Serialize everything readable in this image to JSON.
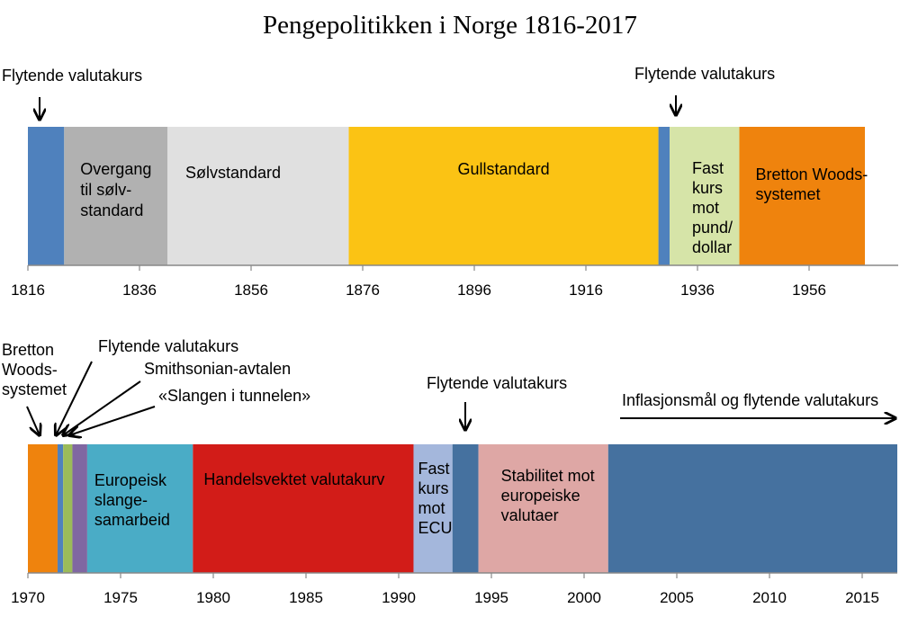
{
  "title": "Pengepolitikken i Norge 1816-2017",
  "colors": {
    "float": "#4f81bd",
    "float_dark": "#45719f",
    "gray": "#b1b1b1",
    "light_gray": "#e0e0e0",
    "gold": "#fbc314",
    "light_green": "#d6e4a8",
    "orange": "#ef830d",
    "green": "#9bbb59",
    "purple": "#8067a2",
    "teal": "#4aacc6",
    "red": "#d21c18",
    "light_blue": "#a4b7dc",
    "pink": "#dea7a5"
  },
  "timeline_top": {
    "start": 1816,
    "end": 1966,
    "ticks": [
      "1816",
      "1836",
      "1856",
      "1876",
      "1896",
      "1916",
      "1936",
      "1956"
    ],
    "segments": [
      {
        "from": 1816,
        "to": 1822.5,
        "color": "float",
        "lines": []
      },
      {
        "from": 1822.5,
        "to": 1841,
        "color": "gray",
        "lines": [
          "Overgang",
          "til sølv-",
          "standard"
        ]
      },
      {
        "from": 1841,
        "to": 1873.5,
        "color": "light_gray",
        "lines": [
          "Sølvstandard"
        ]
      },
      {
        "from": 1873.5,
        "to": 1929,
        "color": "gold",
        "lines": [
          "Gullstandard"
        ]
      },
      {
        "from": 1929,
        "to": 1931,
        "color": "float",
        "lines": []
      },
      {
        "from": 1931,
        "to": 1943.5,
        "color": "light_green",
        "lines": [
          "Fast",
          "kurs",
          "mot",
          "pund/",
          "dollar"
        ]
      },
      {
        "from": 1943.5,
        "to": 1966,
        "color": "orange",
        "lines": [
          "Bretton Woods-",
          "systemet"
        ]
      }
    ],
    "annotations": [
      {
        "lines": [
          "Flytende valutakurs"
        ]
      },
      {
        "lines": [
          "Flytende valutakurs"
        ]
      }
    ]
  },
  "timeline_bottom": {
    "start": 1970,
    "end": 2017,
    "ticks": [
      "1970",
      "1975",
      "1980",
      "1985",
      "1990",
      "1995",
      "2000",
      "2005",
      "2010",
      "2015"
    ],
    "segments": [
      {
        "from": 1970,
        "to": 1971.6,
        "color": "orange",
        "lines": []
      },
      {
        "from": 1971.6,
        "to": 1971.9,
        "color": "float",
        "lines": []
      },
      {
        "from": 1971.9,
        "to": 1972.4,
        "color": "green",
        "lines": []
      },
      {
        "from": 1972.4,
        "to": 1973.2,
        "color": "purple",
        "lines": []
      },
      {
        "from": 1973.2,
        "to": 1978.9,
        "color": "teal",
        "lines": [
          "Europeisk",
          "slange-",
          "samarbeid"
        ]
      },
      {
        "from": 1978.9,
        "to": 1990.8,
        "color": "red",
        "lines": [
          "Handelsvektet valutakurv"
        ]
      },
      {
        "from": 1990.8,
        "to": 1992.9,
        "color": "light_blue",
        "lines": [
          "Fast",
          "kurs",
          "mot",
          "ECU"
        ]
      },
      {
        "from": 1992.9,
        "to": 1994.3,
        "color": "float_dark",
        "lines": []
      },
      {
        "from": 1994.3,
        "to": 2001.3,
        "color": "pink",
        "lines": [
          "Stabilitet mot",
          "europeiske",
          "valutaer"
        ]
      },
      {
        "from": 2001.3,
        "to": 2017,
        "color": "float_dark",
        "lines": []
      }
    ],
    "annotations": [
      {
        "lines": [
          "Bretton",
          "Woods-",
          "systemet"
        ]
      },
      {
        "lines": [
          "Flytende valutakurs"
        ]
      },
      {
        "lines": [
          "Smithsonian-avtalen"
        ]
      },
      {
        "lines": [
          "«Slangen i tunnelen»"
        ]
      },
      {
        "lines": [
          "Flytende valutakurs"
        ]
      },
      {
        "lines": [
          "Inflasjonsmål og flytende valutakurs"
        ]
      }
    ]
  }
}
